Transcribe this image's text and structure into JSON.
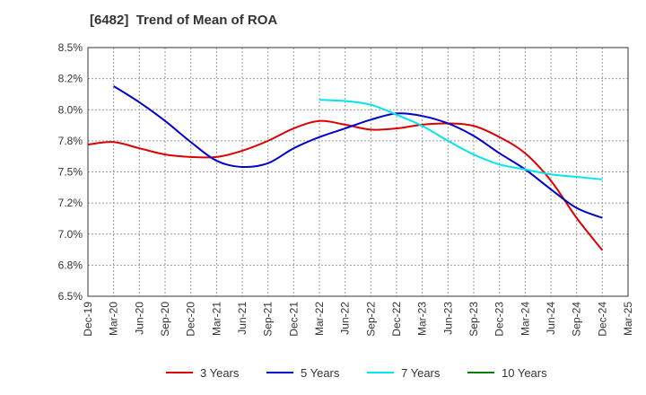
{
  "chart_data": {
    "type": "line",
    "title": "[6482]  Trend of Mean of ROA",
    "xlabel": "",
    "ylabel": "",
    "ylim": [
      6.5,
      8.5
    ],
    "grid": true,
    "legend_position": "bottom",
    "y_ticks": [
      6.5,
      6.75,
      7.0,
      7.25,
      7.5,
      7.75,
      8.0,
      8.25,
      8.5
    ],
    "y_tick_labels": [
      "6.5%",
      "6.8%",
      "7.0%",
      "7.2%",
      "7.5%",
      "7.8%",
      "8.0%",
      "8.2%",
      "8.5%"
    ],
    "x_tick_labels": [
      "Dec-19",
      "Mar-20",
      "Jun-20",
      "Sep-20",
      "Dec-20",
      "Mar-21",
      "Jun-21",
      "Sep-21",
      "Dec-21",
      "Mar-22",
      "Jun-22",
      "Sep-22",
      "Dec-22",
      "Mar-23",
      "Jun-23",
      "Sep-23",
      "Dec-23",
      "Mar-24",
      "Jun-24",
      "Sep-24",
      "Dec-24",
      "Mar-25"
    ],
    "series": [
      {
        "name": "3 Years",
        "color": "#dd0000",
        "values": [
          7.72,
          7.74,
          7.69,
          7.64,
          7.62,
          7.62,
          7.67,
          7.75,
          7.85,
          7.91,
          7.88,
          7.84,
          7.85,
          7.88,
          7.89,
          7.87,
          7.78,
          7.65,
          7.43,
          7.13,
          6.87,
          null
        ]
      },
      {
        "name": "5 Years",
        "color": "#0000cc",
        "values": [
          null,
          8.19,
          8.06,
          7.91,
          7.74,
          7.59,
          7.54,
          7.57,
          7.69,
          7.78,
          7.85,
          7.92,
          7.97,
          7.95,
          7.89,
          7.79,
          7.65,
          7.52,
          7.36,
          7.21,
          7.13,
          null
        ]
      },
      {
        "name": "7 Years",
        "color": "#00e5ee",
        "values": [
          null,
          null,
          null,
          null,
          null,
          null,
          null,
          null,
          null,
          8.08,
          8.07,
          8.04,
          7.96,
          7.87,
          7.75,
          7.64,
          7.56,
          7.52,
          7.48,
          7.46,
          7.44,
          null
        ]
      },
      {
        "name": "10 Years",
        "color": "#008000",
        "values": [
          null,
          null,
          null,
          null,
          null,
          null,
          null,
          null,
          null,
          null,
          null,
          null,
          null,
          null,
          null,
          null,
          null,
          null,
          null,
          null,
          null,
          null
        ]
      }
    ]
  }
}
